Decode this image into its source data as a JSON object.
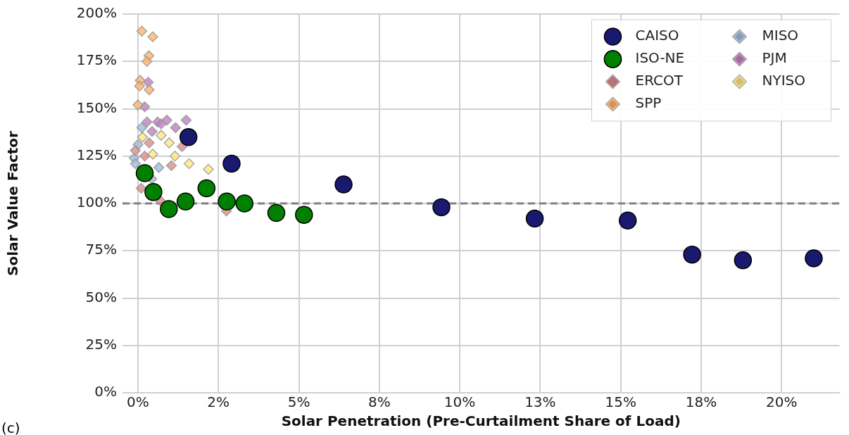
{
  "chart_data": {
    "type": "scatter",
    "xlabel": "Solar Penetration (Pre-Curtailment Share of Load)",
    "ylabel": "Solar Value Factor",
    "xlim": [
      -0.48,
      21.8
    ],
    "ylim": [
      0,
      200
    ],
    "xticks": [
      {
        "value": 0,
        "label": "0%"
      },
      {
        "value": 2.5,
        "label": "2%"
      },
      {
        "value": 5,
        "label": "5%"
      },
      {
        "value": 7.5,
        "label": "8%"
      },
      {
        "value": 10,
        "label": "10%"
      },
      {
        "value": 12.5,
        "label": "13%"
      },
      {
        "value": 15,
        "label": "15%"
      },
      {
        "value": 17.5,
        "label": "18%"
      },
      {
        "value": 20,
        "label": "20%"
      }
    ],
    "yticks": [
      {
        "value": 0,
        "label": "0%"
      },
      {
        "value": 25,
        "label": "25%"
      },
      {
        "value": 50,
        "label": "50%"
      },
      {
        "value": 75,
        "label": "75%"
      },
      {
        "value": 100,
        "label": "100%"
      },
      {
        "value": 125,
        "label": "125%"
      },
      {
        "value": 150,
        "label": "150%"
      },
      {
        "value": 175,
        "label": "175%"
      },
      {
        "value": 200,
        "label": "200%"
      }
    ],
    "grid": true,
    "legend": "top right",
    "ref_lines": [
      {
        "axis": "y",
        "value": 100,
        "color": "#808080",
        "line_style": "dashed"
      }
    ],
    "annotations": [
      "(c)"
    ],
    "series": [
      {
        "name": "CAISO",
        "color": "#191970",
        "marker": "circle",
        "x": [
          1.57,
          2.91,
          6.39,
          9.43,
          12.33,
          15.22,
          17.22,
          18.8,
          21.0
        ],
        "values": [
          135,
          121,
          110,
          98,
          92,
          91,
          73,
          70,
          71
        ]
      },
      {
        "name": "ISO-NE",
        "color": "#008000",
        "marker": "circle",
        "x": [
          0.21,
          0.48,
          0.96,
          1.48,
          2.13,
          2.76,
          3.31,
          4.3,
          5.16
        ],
        "values": [
          116,
          106,
          97,
          101,
          108,
          101,
          100,
          95,
          94
        ]
      },
      {
        "name": "ERCOT",
        "color": "#d98c8c",
        "marker": "diamond",
        "x": [
          1.37,
          1.04,
          0.1,
          -0.08,
          0.21,
          0.35,
          2.75,
          0.72
        ],
        "values": [
          130,
          120,
          108,
          128,
          125,
          132,
          96,
          101
        ]
      },
      {
        "name": "SPP",
        "color": "#ffb366",
        "marker": "diamond",
        "x": [
          0.12,
          0.46,
          0.34,
          0.28,
          0.07,
          0.05,
          0.35,
          0.0
        ],
        "values": [
          191,
          188,
          178,
          175,
          165,
          162,
          160,
          152
        ]
      },
      {
        "name": "MISO",
        "color": "#9dbbd9",
        "marker": "diamond",
        "x": [
          0.12,
          0.0,
          -0.12,
          -0.08,
          0.65,
          0.43
        ],
        "values": [
          140,
          131,
          124,
          121,
          119,
          113
        ]
      },
      {
        "name": "PJM",
        "color": "#c080c0",
        "marker": "diamond",
        "x": [
          0.32,
          0.21,
          0.28,
          0.61,
          0.9,
          1.17,
          1.5,
          0.44,
          0.72
        ],
        "values": [
          164,
          151,
          143,
          143,
          144,
          140,
          144,
          138,
          142
        ]
      },
      {
        "name": "NYISO",
        "color": "#ffe680",
        "marker": "diamond",
        "x": [
          0.14,
          0.72,
          0.97,
          0.46,
          1.15,
          1.59,
          2.19
        ],
        "values": [
          135,
          136,
          132,
          126,
          125,
          121,
          118
        ]
      }
    ]
  }
}
